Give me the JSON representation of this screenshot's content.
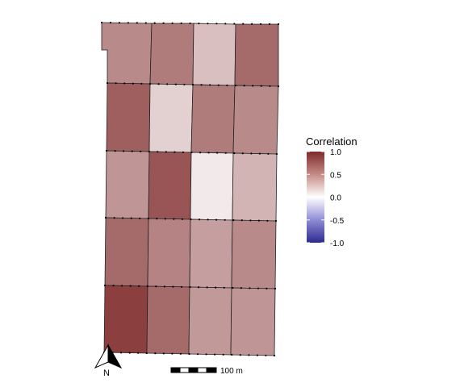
{
  "legend": {
    "title": "Correlation",
    "ticks": [
      "1.0",
      "0.5",
      "0.0",
      "-0.5",
      "-1.0"
    ],
    "tick_values": [
      1.0,
      0.5,
      0.0,
      -0.5,
      -1.0
    ],
    "scale_colors": {
      "high": "#7f2a2a",
      "mid": "#ffffff",
      "low": "#2c2b8f"
    }
  },
  "grid": {
    "rows": 5,
    "cols": 4,
    "values": [
      [
        0.55,
        0.62,
        0.3,
        0.7
      ],
      [
        0.75,
        0.22,
        0.62,
        0.55
      ],
      [
        0.5,
        0.8,
        0.1,
        0.35
      ],
      [
        0.7,
        0.58,
        0.45,
        0.55
      ],
      [
        0.9,
        0.7,
        0.48,
        0.5
      ]
    ]
  },
  "scalebar": {
    "label": "100 m"
  },
  "north_arrow": {
    "label": "N",
    "icon": "north-arrow-icon"
  },
  "colors": {
    "cell_border": "#222222",
    "dots": "#000000"
  }
}
